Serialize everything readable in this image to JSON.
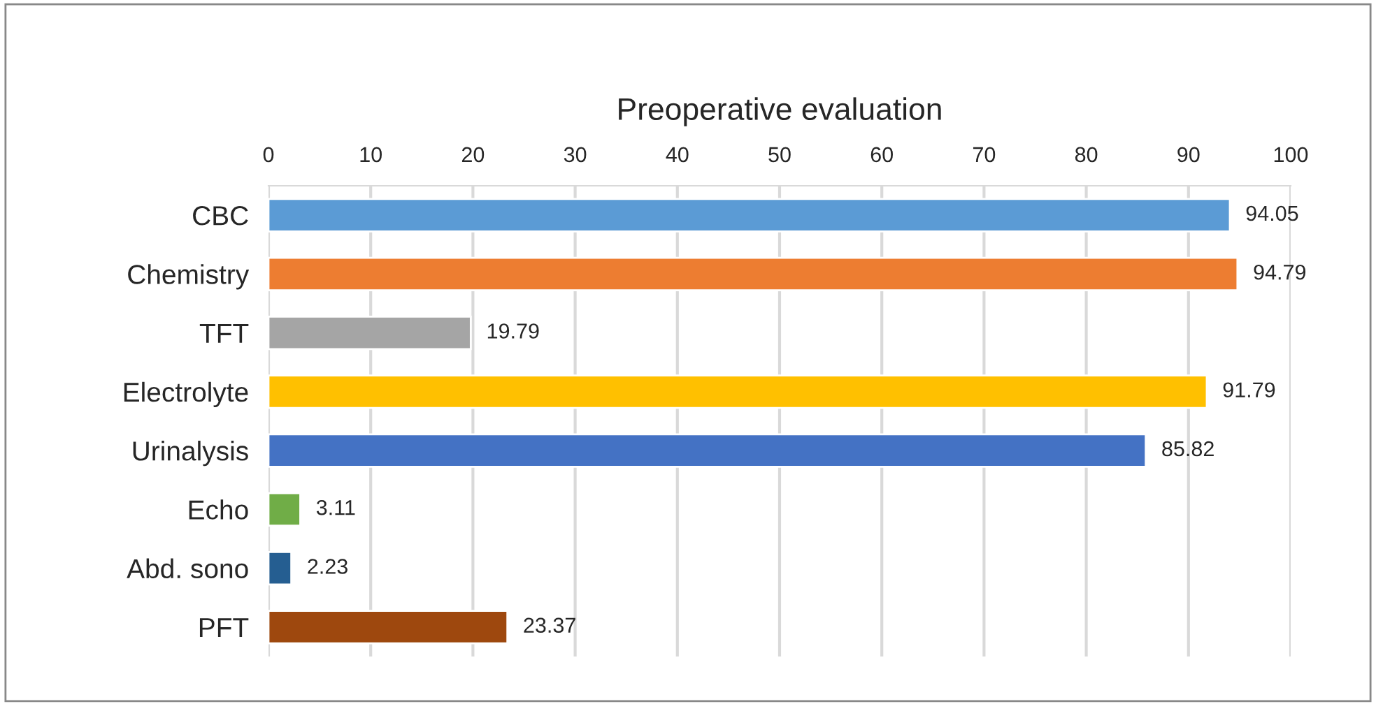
{
  "chart_data": {
    "type": "bar",
    "orientation": "horizontal",
    "title": "Preoperative evaluation",
    "categories": [
      "CBC",
      "Chemistry",
      "TFT",
      "Electrolyte",
      "Urinalysis",
      "Echo",
      "Abd. sono",
      "PFT"
    ],
    "values": [
      94.05,
      94.79,
      19.79,
      91.79,
      85.82,
      3.11,
      2.23,
      23.37
    ],
    "colors": [
      "#5b9bd5",
      "#ed7d31",
      "#a5a5a5",
      "#ffc000",
      "#4472c4",
      "#70ad47",
      "#255e91",
      "#9e480e"
    ],
    "xlim": [
      0,
      100
    ],
    "xticks": [
      0,
      10,
      20,
      30,
      40,
      50,
      60,
      70,
      80,
      90,
      100
    ],
    "grid": "x",
    "data_labels": true,
    "legend": false
  }
}
